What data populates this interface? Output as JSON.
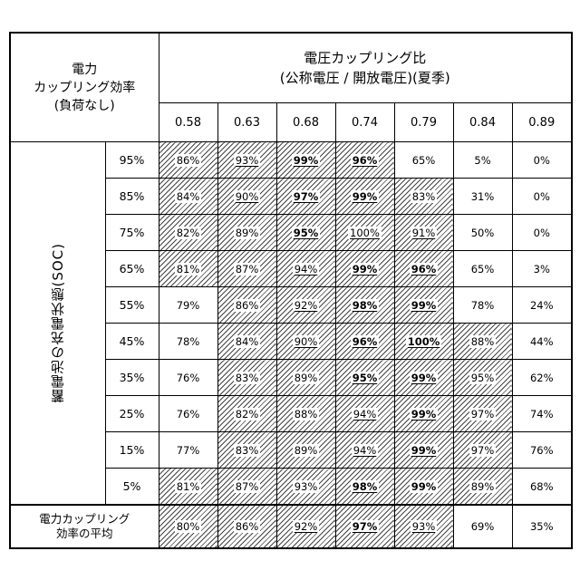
{
  "corner_label": [
    "電力",
    "カップリング効率",
    "(負荷なし)"
  ],
  "column_header": [
    "電圧カップリング比",
    "(公称電圧 / 開放電圧)(夏季)"
  ],
  "columns": [
    "0.58",
    "0.63",
    "0.68",
    "0.74",
    "0.79",
    "0.84",
    "0.89"
  ],
  "row_group_label": "蓄電池の充電状態(SOC)",
  "rows": [
    {
      "label": "95%",
      "values": [
        "86%",
        "93%",
        "99%",
        "96%",
        "65%",
        "5%",
        "0%"
      ],
      "hatched": [
        1,
        1,
        1,
        1,
        0,
        0,
        0
      ],
      "underlined": [
        0,
        1,
        1,
        1,
        0,
        0,
        0
      ],
      "bold": [
        0,
        0,
        1,
        1,
        0,
        0,
        0
      ]
    },
    {
      "label": "85%",
      "values": [
        "84%",
        "90%",
        "97%",
        "99%",
        "83%",
        "31%",
        "0%"
      ],
      "hatched": [
        1,
        1,
        1,
        1,
        1,
        0,
        0
      ],
      "underlined": [
        0,
        1,
        1,
        1,
        0,
        0,
        0
      ],
      "bold": [
        0,
        0,
        1,
        1,
        0,
        0,
        0
      ]
    },
    {
      "label": "75%",
      "values": [
        "82%",
        "89%",
        "95%",
        "100%",
        "91%",
        "50%",
        "0%"
      ],
      "hatched": [
        1,
        1,
        1,
        1,
        1,
        0,
        0
      ],
      "underlined": [
        0,
        0,
        1,
        1,
        1,
        0,
        0
      ],
      "bold": [
        0,
        0,
        1,
        0,
        0,
        0,
        0
      ]
    },
    {
      "label": "65%",
      "values": [
        "81%",
        "87%",
        "94%",
        "99%",
        "96%",
        "65%",
        "3%"
      ],
      "hatched": [
        1,
        1,
        1,
        1,
        1,
        0,
        0
      ],
      "underlined": [
        0,
        0,
        1,
        1,
        1,
        0,
        0
      ],
      "bold": [
        0,
        0,
        0,
        1,
        1,
        0,
        0
      ]
    },
    {
      "label": "55%",
      "values": [
        "79%",
        "86%",
        "92%",
        "98%",
        "99%",
        "78%",
        "24%"
      ],
      "hatched": [
        0,
        1,
        1,
        1,
        1,
        0,
        0
      ],
      "underlined": [
        0,
        0,
        1,
        1,
        1,
        0,
        0
      ],
      "bold": [
        0,
        0,
        0,
        1,
        1,
        0,
        0
      ]
    },
    {
      "label": "45%",
      "values": [
        "78%",
        "84%",
        "90%",
        "96%",
        "100%",
        "88%",
        "44%"
      ],
      "hatched": [
        0,
        1,
        1,
        1,
        1,
        1,
        0
      ],
      "underlined": [
        0,
        0,
        1,
        1,
        1,
        0,
        0
      ],
      "bold": [
        0,
        0,
        0,
        1,
        1,
        0,
        0
      ]
    },
    {
      "label": "35%",
      "values": [
        "76%",
        "83%",
        "89%",
        "95%",
        "99%",
        "95%",
        "62%"
      ],
      "hatched": [
        0,
        1,
        1,
        1,
        1,
        1,
        0
      ],
      "underlined": [
        0,
        0,
        0,
        1,
        1,
        0,
        0
      ],
      "bold": [
        0,
        0,
        0,
        1,
        1,
        0,
        0
      ]
    },
    {
      "label": "25%",
      "values": [
        "76%",
        "82%",
        "88%",
        "94%",
        "99%",
        "97%",
        "74%"
      ],
      "hatched": [
        0,
        1,
        1,
        1,
        1,
        1,
        0
      ],
      "underlined": [
        0,
        0,
        0,
        1,
        1,
        0,
        0
      ],
      "bold": [
        0,
        0,
        0,
        0,
        1,
        0,
        0
      ]
    },
    {
      "label": "15%",
      "values": [
        "77%",
        "83%",
        "89%",
        "94%",
        "99%",
        "97%",
        "76%"
      ],
      "hatched": [
        0,
        1,
        1,
        1,
        1,
        1,
        0
      ],
      "underlined": [
        0,
        0,
        0,
        1,
        1,
        0,
        0
      ],
      "bold": [
        0,
        0,
        0,
        0,
        1,
        0,
        0
      ]
    },
    {
      "label": "5%",
      "values": [
        "81%",
        "87%",
        "93%",
        "98%",
        "99%",
        "89%",
        "68%"
      ],
      "hatched": [
        1,
        1,
        1,
        1,
        1,
        1,
        0
      ],
      "underlined": [
        0,
        0,
        0,
        1,
        0,
        0,
        0
      ],
      "bold": [
        0,
        0,
        0,
        1,
        1,
        0,
        0
      ]
    }
  ],
  "average_row": {
    "label": [
      "電力カップリング",
      "効率の平均"
    ],
    "values": [
      "80%",
      "86%",
      "92%",
      "97%",
      "93%",
      "69%",
      "35%"
    ],
    "hatched": [
      1,
      1,
      1,
      1,
      1,
      0,
      0
    ],
    "underlined": [
      0,
      0,
      1,
      1,
      1,
      0,
      0
    ],
    "bold": [
      0,
      0,
      0,
      1,
      0,
      0,
      0
    ]
  }
}
